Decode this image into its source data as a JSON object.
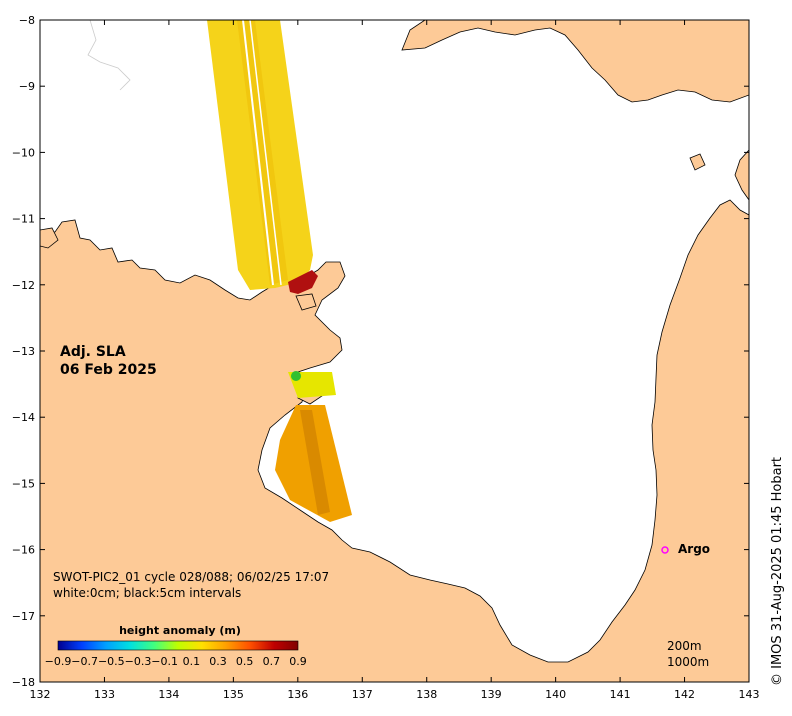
{
  "map": {
    "lon_range": [
      132,
      143
    ],
    "lat_range": [
      -18,
      -8
    ],
    "x_ticks": [
      "132",
      "133",
      "134",
      "135",
      "136",
      "137",
      "138",
      "139",
      "140",
      "141",
      "142",
      "143"
    ],
    "y_ticks": [
      "-8",
      "-9",
      "-10",
      "-11",
      "-12",
      "-13",
      "-14",
      "-15",
      "-16",
      "-17",
      "-18"
    ],
    "land_color": "#fdca97",
    "sea_color": "#ffffff"
  },
  "label": {
    "line1": "Adj. SLA",
    "line2": "06 Feb 2025"
  },
  "info": {
    "line1": "SWOT-PIC2_01 cycle 028/088; 06/02/25 17:07",
    "line2": "white:0cm; black:5cm intervals"
  },
  "colorbar": {
    "title": "height anomaly (m)",
    "ticks": [
      "-0.9",
      "-0.7",
      "-0.5",
      "-0.3",
      "-0.1",
      "0.1",
      "0.3",
      "0.5",
      "0.7",
      "0.9"
    ],
    "colors": [
      "#00008f",
      "#0040ff",
      "#00a0ff",
      "#00e0e0",
      "#40ff80",
      "#c0ff00",
      "#ffe000",
      "#ffa000",
      "#ff5000",
      "#c00000",
      "#800000"
    ]
  },
  "argo": {
    "label": "Argo",
    "color": "#ff00ff"
  },
  "depth": {
    "line1": "200m",
    "line2": "1000m"
  },
  "credit": "© IMOS 31-Aug-2025 01:45 Hobart"
}
